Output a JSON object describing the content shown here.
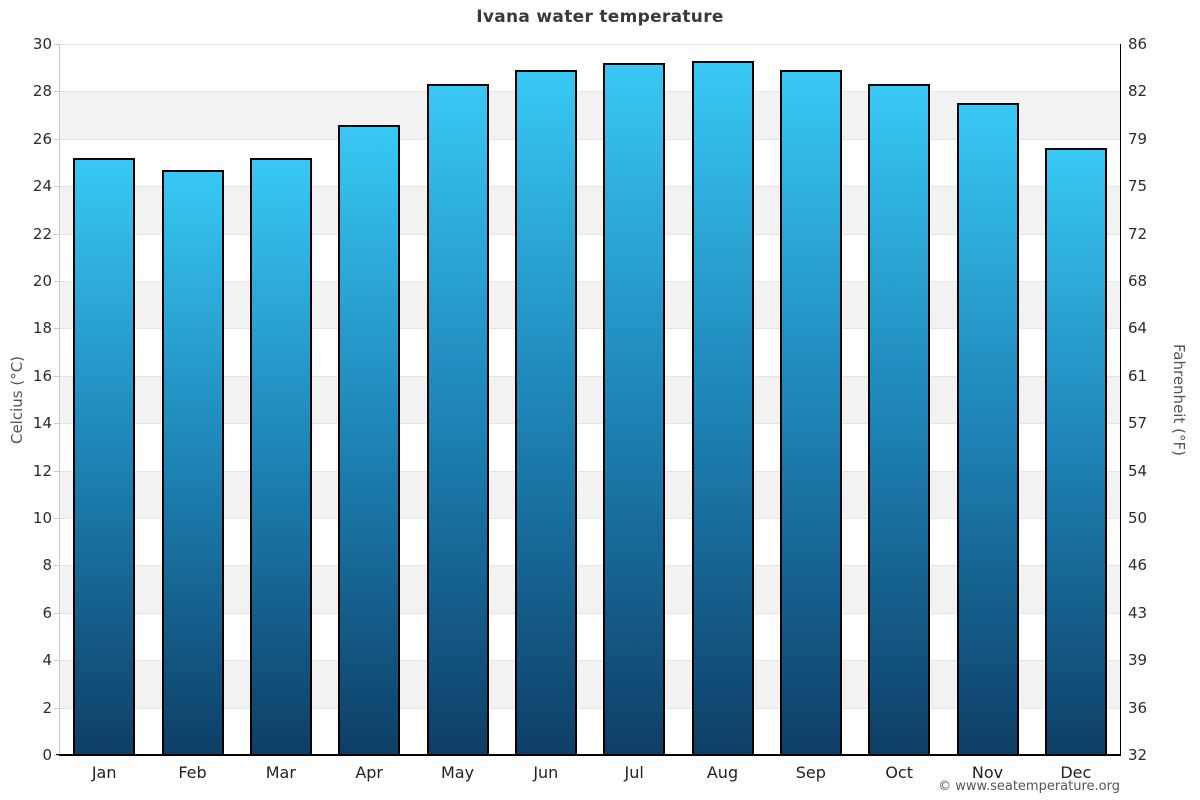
{
  "title": "Ivana water temperature",
  "credit": {
    "text": "© www.seatemperature.org"
  },
  "axes": {
    "left": {
      "title": "Celcius (°C)"
    },
    "right": {
      "title": "Fahrenheit (°F)"
    }
  },
  "chart_data": {
    "type": "bar",
    "title": "Ivana water temperature",
    "categories": [
      "Jan",
      "Feb",
      "Mar",
      "Apr",
      "May",
      "Jun",
      "Jul",
      "Aug",
      "Sep",
      "Oct",
      "Nov",
      "Dec"
    ],
    "values": [
      25.2,
      24.7,
      25.2,
      26.6,
      28.3,
      28.9,
      29.2,
      29.3,
      28.9,
      28.3,
      27.5,
      25.6
    ],
    "unit": "°C",
    "ylabel_left": "Celcius (°C)",
    "ylabel_right": "Fahrenheit (°F)",
    "ylim": [
      0,
      30
    ],
    "yticks_celsius": [
      0,
      2,
      4,
      6,
      8,
      10,
      12,
      14,
      16,
      18,
      20,
      22,
      24,
      26,
      28,
      30
    ],
    "yticks_fahrenheit_labels": [
      32,
      36,
      39,
      43,
      46,
      50,
      54,
      57,
      61,
      64,
      68,
      72,
      75,
      79,
      82,
      86
    ],
    "grid": "alternating 2-degree horizontal bands, white and light gray",
    "legend": "none",
    "colors": {
      "bar_gradient_top": "#38c8f5",
      "bar_gradient_mid": "#1d83b5",
      "bar_gradient_bottom": "#0d3e66",
      "bar_border": "#000000",
      "band_gray": "#f2f2f2",
      "gridline": "#e4e4e4",
      "title_text": "#3a3a3a",
      "tick_text": "#2b2b2b",
      "axis_title_text": "#555555"
    }
  }
}
